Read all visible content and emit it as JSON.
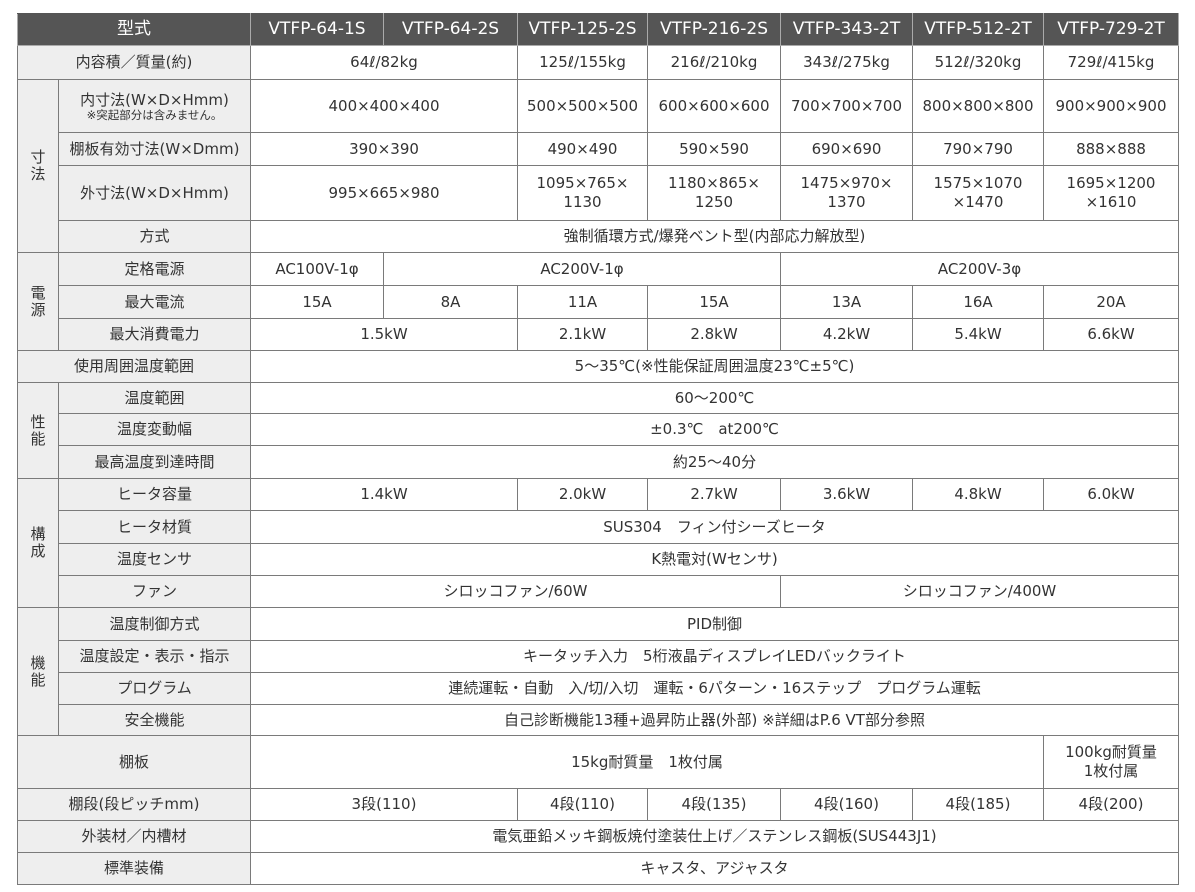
{
  "header": {
    "label": "型式",
    "models": [
      "VTFP-64-1S",
      "VTFP-64-2S",
      "VTFP-125-2S",
      "VTFP-216-2S",
      "VTFP-343-2T",
      "VTFP-512-2T",
      "VTFP-729-2T"
    ]
  },
  "rows": [
    {
      "label": "内容積／質量(約)",
      "cells": [
        {
          "t": "64ℓ/82kg",
          "s": 2
        },
        {
          "t": "125ℓ/155kg"
        },
        {
          "t": "216ℓ/210kg"
        },
        {
          "t": "343ℓ/275kg"
        },
        {
          "t": "512ℓ/320kg"
        },
        {
          "t": "729ℓ/415kg"
        }
      ]
    },
    {
      "group": "寸\n法",
      "groupRows": 4,
      "label": "内寸法(W×D×Hmm)",
      "note": "※突起部分は含みません。",
      "cells": [
        {
          "t": "400×400×400",
          "s": 2
        },
        {
          "t": "500×500×500"
        },
        {
          "t": "600×600×600"
        },
        {
          "t": "700×700×700"
        },
        {
          "t": "800×800×800"
        },
        {
          "t": "900×900×900"
        }
      ]
    },
    {
      "label": "棚板有効寸法(W×Dmm)",
      "cells": [
        {
          "t": "390×390",
          "s": 2
        },
        {
          "t": "490×490"
        },
        {
          "t": "590×590"
        },
        {
          "t": "690×690"
        },
        {
          "t": "790×790"
        },
        {
          "t": "888×888"
        }
      ]
    },
    {
      "label": "外寸法(W×D×Hmm)",
      "cells": [
        {
          "t": "995×665×980",
          "s": 2
        },
        {
          "t": "1095×765×\n1130"
        },
        {
          "t": "1180×865×\n1250"
        },
        {
          "t": "1475×970×\n1370"
        },
        {
          "t": "1575×1070\n×1470"
        },
        {
          "t": "1695×1200\n×1610"
        }
      ]
    },
    {
      "label": "方式",
      "cells": [
        {
          "t": "強制循環方式/爆発ベント型(内部応力解放型)",
          "s": 7
        }
      ]
    },
    {
      "group": "電\n源",
      "groupRows": 3,
      "label": "定格電源",
      "cells": [
        {
          "t": "AC100V-1φ"
        },
        {
          "t": "AC200V-1φ",
          "s": 3
        },
        {
          "t": "AC200V-3φ",
          "s": 3
        }
      ]
    },
    {
      "label": "最大電流",
      "cells": [
        {
          "t": "15A"
        },
        {
          "t": "8A"
        },
        {
          "t": "11A"
        },
        {
          "t": "15A"
        },
        {
          "t": "13A"
        },
        {
          "t": "16A"
        },
        {
          "t": "20A"
        }
      ]
    },
    {
      "label": "最大消費電力",
      "cells": [
        {
          "t": "1.5kW",
          "s": 2
        },
        {
          "t": "2.1kW"
        },
        {
          "t": "2.8kW"
        },
        {
          "t": "4.2kW"
        },
        {
          "t": "5.4kW"
        },
        {
          "t": "6.6kW"
        }
      ]
    },
    {
      "label": "使用周囲温度範囲",
      "cells": [
        {
          "t": "5～35℃(※性能保証周囲温度23℃±5℃)",
          "s": 7
        }
      ]
    },
    {
      "group": "性\n能",
      "groupRows": 3,
      "label": "温度範囲",
      "cells": [
        {
          "t": "60～200℃",
          "s": 7
        }
      ]
    },
    {
      "label": "温度変動幅",
      "cells": [
        {
          "t": "±0.3℃　at200℃",
          "s": 7
        }
      ]
    },
    {
      "label": "最高温度到達時間",
      "cells": [
        {
          "t": "約25～40分",
          "s": 7
        }
      ]
    },
    {
      "group": "構\n成",
      "groupRows": 4,
      "label": "ヒータ容量",
      "cells": [
        {
          "t": "1.4kW",
          "s": 2
        },
        {
          "t": "2.0kW"
        },
        {
          "t": "2.7kW"
        },
        {
          "t": "3.6kW"
        },
        {
          "t": "4.8kW"
        },
        {
          "t": "6.0kW"
        }
      ]
    },
    {
      "label": "ヒータ材質",
      "cells": [
        {
          "t": "SUS304　フィン付シーズヒータ",
          "s": 7
        }
      ]
    },
    {
      "label": "温度センサ",
      "cells": [
        {
          "t": "K熱電対(Wセンサ)",
          "s": 7
        }
      ]
    },
    {
      "label": "ファン",
      "cells": [
        {
          "t": "シロッコファン/60W",
          "s": 4
        },
        {
          "t": "シロッコファン/400W",
          "s": 3
        }
      ]
    },
    {
      "group": "機\n能",
      "groupRows": 4,
      "label": "温度制御方式",
      "cells": [
        {
          "t": "PID制御",
          "s": 7
        }
      ]
    },
    {
      "label": "温度設定・表示・指示",
      "cells": [
        {
          "t": "キータッチ入力　5桁液晶ディスプレイLEDバックライト",
          "s": 7
        }
      ]
    },
    {
      "label": "プログラム",
      "cells": [
        {
          "t": "連続運転・自動　入/切/入切　運転・6パターン・16ステップ　プログラム運転",
          "s": 7
        }
      ]
    },
    {
      "label": "安全機能",
      "cells": [
        {
          "t": "自己診断機能13種+過昇防止器(外部) ※詳細はP.6 VT部分参照",
          "s": 7
        }
      ]
    },
    {
      "label": "棚板",
      "cells": [
        {
          "t": "15kg耐質量　1枚付属",
          "s": 6
        },
        {
          "t": "100kg耐質量\n1枚付属"
        }
      ]
    },
    {
      "label": "棚段(段ピッチmm)",
      "cells": [
        {
          "t": "3段(110)",
          "s": 2
        },
        {
          "t": "4段(110)"
        },
        {
          "t": "4段(135)"
        },
        {
          "t": "4段(160)"
        },
        {
          "t": "4段(185)"
        },
        {
          "t": "4段(200)"
        }
      ]
    },
    {
      "label": "外装材／内槽材",
      "cells": [
        {
          "t": "電気亜鉛メッキ鋼板焼付塗装仕上げ／ステンレス鋼板(SUS443J1)",
          "s": 7
        }
      ]
    },
    {
      "label": "標準装備",
      "cells": [
        {
          "t": "キャスタ、アジャスタ",
          "s": 7
        }
      ]
    }
  ]
}
